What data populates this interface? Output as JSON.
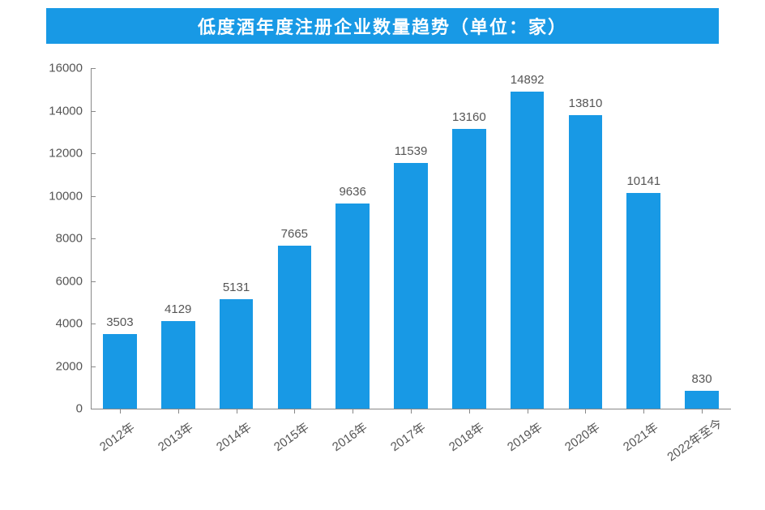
{
  "chart": {
    "type": "bar",
    "title": "低度酒年度注册企业数量趋势（单位：家）",
    "title_bg_color": "#1899e5",
    "title_text_color": "#ffffff",
    "title_fontsize": 22,
    "background_color": "#ffffff",
    "bar_color": "#1899e5",
    "axis_color": "#888888",
    "label_color": "#555555",
    "label_fontsize": 15,
    "tick_fontsize": 15,
    "ylim": [
      0,
      16000
    ],
    "ytick_step": 2000,
    "yticks": [
      0,
      2000,
      4000,
      6000,
      8000,
      10000,
      12000,
      14000,
      16000
    ],
    "categories": [
      "2012年",
      "2013年",
      "2014年",
      "2015年",
      "2016年",
      "2017年",
      "2018年",
      "2019年",
      "2020年",
      "2021年",
      "2022年至今"
    ],
    "values": [
      3503,
      4129,
      5131,
      7665,
      9636,
      11539,
      13160,
      14892,
      13810,
      10141,
      830
    ],
    "bar_width_ratio": 0.58,
    "x_label_rotation_deg": -35
  }
}
